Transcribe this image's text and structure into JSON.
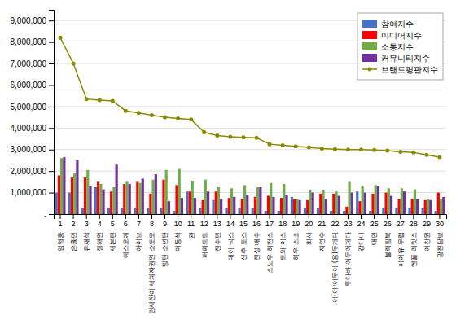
{
  "chart_data": {
    "type": "bar",
    "categories": [
      "1",
      "2",
      "3",
      "4",
      "5",
      "6",
      "7",
      "8",
      "9",
      "10",
      "11",
      "12",
      "13",
      "14",
      "15",
      "16",
      "17",
      "18",
      "19",
      "20",
      "21",
      "22",
      "23",
      "24",
      "25",
      "26",
      "27",
      "28",
      "29",
      "30"
    ],
    "annotations": [
      "임영웅",
      "손흉민",
      "유재석",
      "정해인",
      "세븐틴",
      "예스오예",
      "아이브",
      "린세진이\n세계자권인\n소도모",
      "방탄\n소년단",
      "마동석",
      "관",
      "퍼퍼트트",
      "전수민",
      "데이\n식스",
      "신추\n토스",
      "전성\n배수",
      "스노우\n하떤스",
      "트와\n이스",
      "하우\n스소",
      "화사",
      "자연수",
      "이(어)이두이\n(용)두게다",
      "투다바\n이두이게다",
      "강다니",
      "태연",
      "블랙핌북",
      "아이유\n무렵",
      "엔플\n라잇스",
      "이찬원",
      "광진담보"
    ],
    "series": [
      {
        "name": "참여지수",
        "type": "bar",
        "color": "#4472C4",
        "values": [
          1000000,
          1000000,
          300000,
          1250000,
          300000,
          280000,
          300000,
          280000,
          280000,
          150000,
          1050000,
          300000,
          650000,
          280000,
          280000,
          280000,
          150000,
          150000,
          800000,
          280000,
          280000,
          150000,
          150000,
          1050000,
          150000,
          280000,
          280000,
          280000,
          280000,
          150000
        ]
      },
      {
        "name": "미디어지수",
        "type": "bar",
        "color": "#FF0000",
        "values": [
          1800000,
          1700000,
          1700000,
          1500000,
          1050000,
          1400000,
          1500000,
          950000,
          1600000,
          1350000,
          1050000,
          650000,
          1050000,
          750000,
          700000,
          800000,
          850000,
          750000,
          700000,
          650000,
          950000,
          950000,
          350000,
          600000,
          950000,
          1000000,
          700000,
          700000,
          650000,
          1000000
        ]
      },
      {
        "name": "소통지수",
        "type": "bar",
        "color": "#70AD47",
        "values": [
          2600000,
          1900000,
          2050000,
          1400000,
          1250000,
          1500000,
          1450000,
          1600000,
          2050000,
          2100000,
          1550000,
          1600000,
          1250000,
          1200000,
          1350000,
          1250000,
          1450000,
          1400000,
          700000,
          1100000,
          1100000,
          1050000,
          1500000,
          1300000,
          1350000,
          1200000,
          1200000,
          1150000,
          700000,
          700000
        ]
      },
      {
        "name": "커뮤니티지수",
        "type": "bar",
        "color": "#7030A0",
        "values": [
          2650000,
          2500000,
          1300000,
          1150000,
          2300000,
          1400000,
          1650000,
          1850000,
          600000,
          750000,
          750000,
          1050000,
          700000,
          800000,
          900000,
          1250000,
          800000,
          900000,
          650000,
          1000000,
          700000,
          850000,
          1000000,
          1000000,
          1300000,
          850000,
          1050000,
          700000,
          650000,
          800000
        ]
      },
      {
        "name": "브랜드평판지수",
        "type": "line",
        "color": "#8B8B00",
        "marker": "circle",
        "values": [
          8200000,
          7000000,
          5350000,
          5300000,
          5260000,
          4800000,
          4700000,
          4600000,
          4500000,
          4450000,
          4400000,
          3800000,
          3650000,
          3600000,
          3570000,
          3550000,
          3250000,
          3200000,
          3150000,
          3100000,
          3050000,
          3020000,
          3000000,
          3000000,
          2980000,
          2950000,
          2900000,
          2870000,
          2750000,
          2650000
        ]
      }
    ],
    "ylim": [
      0,
      9500000
    ],
    "yticks": [
      {
        "value": 0,
        "label": "."
      },
      {
        "value": 1000000,
        "label": "1,000,000"
      },
      {
        "value": 2000000,
        "label": "2,000,000"
      },
      {
        "value": 3000000,
        "label": "3,000,000"
      },
      {
        "value": 4000000,
        "label": "4,000,000"
      },
      {
        "value": 5000000,
        "label": "5,000,000"
      },
      {
        "value": 6000000,
        "label": "6,000,000"
      },
      {
        "value": 7000000,
        "label": "7,000,000"
      },
      {
        "value": 8000000,
        "label": "8,000,000"
      },
      {
        "value": 9000000,
        "label": "9,000,000"
      }
    ],
    "grid": true,
    "legend": "upper right"
  }
}
